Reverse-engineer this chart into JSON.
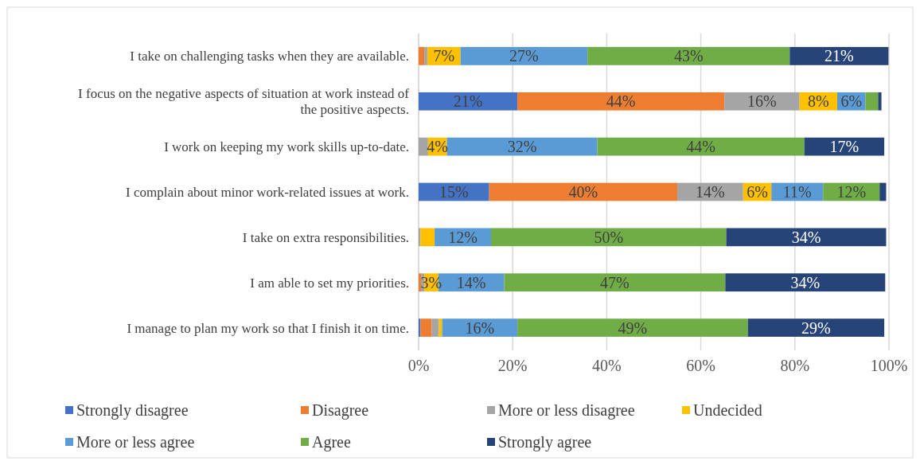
{
  "chart_data": {
    "type": "bar",
    "orientation": "horizontal",
    "stacked": true,
    "categories": [
      "I take on challenging tasks when they are available.",
      "I focus on the negative aspects of situation at work instead of the positive aspects.",
      "I work on keeping my work skills up-to-date.",
      "I complain about minor work-related issues at work.",
      "I take on extra responsibilities.",
      "I am able to set my priorities.",
      "I manage to plan my work so that I finish it on time."
    ],
    "series": [
      {
        "name": "Strongly disagree",
        "color": "#4472c4",
        "values": [
          0,
          21,
          0,
          15,
          0,
          0,
          0.4
        ],
        "value_labels": [
          null,
          "21%",
          null,
          "15%",
          null,
          null,
          null
        ]
      },
      {
        "name": "Disagree",
        "color": "#ed7d31",
        "values": [
          1.2,
          44,
          0,
          40,
          0,
          0.5,
          2.4
        ],
        "value_labels": [
          null,
          "44%",
          null,
          "40%",
          null,
          null,
          null
        ]
      },
      {
        "name": "More or less disagree",
        "color": "#a5a5a5",
        "values": [
          0.7,
          16,
          2,
          14,
          0.4,
          0.7,
          1.5
        ],
        "value_labels": [
          null,
          "16%",
          null,
          "14%",
          null,
          null,
          null
        ]
      },
      {
        "name": "Undecided",
        "color": "#ffc000",
        "values": [
          7,
          8,
          4,
          6,
          3,
          3,
          0.7
        ],
        "value_labels": [
          "7%",
          "8%",
          "4%",
          "6%",
          null,
          "3%",
          null
        ]
      },
      {
        "name": "More or less agree",
        "color": "#5b9bd5",
        "values": [
          27,
          6,
          32,
          11,
          12,
          14,
          16
        ],
        "value_labels": [
          "27%",
          "6%",
          "32%",
          "11%",
          "12%",
          "14%",
          "16%"
        ]
      },
      {
        "name": "Agree",
        "color": "#70ad47",
        "values": [
          43,
          2.7,
          44,
          12,
          50,
          47,
          49
        ],
        "value_labels": [
          "43%",
          null,
          "44%",
          "12%",
          "50%",
          "47%",
          "49%"
        ]
      },
      {
        "name": "Strongly agree",
        "color": "#264478",
        "values": [
          21,
          0.7,
          17,
          1.4,
          34,
          34,
          29
        ],
        "value_labels": [
          "21%",
          null,
          "17%",
          null,
          "34%",
          "34%",
          "29%"
        ]
      }
    ],
    "xlim": [
      0,
      100
    ],
    "xticks": [
      {
        "value": 0,
        "label": "0%"
      },
      {
        "value": 20,
        "label": "20%"
      },
      {
        "value": 40,
        "label": "40%"
      },
      {
        "value": 60,
        "label": "60%"
      },
      {
        "value": 80,
        "label": "80%"
      },
      {
        "value": 100,
        "label": "100%"
      }
    ],
    "grid": "x",
    "legend": "bottom"
  }
}
